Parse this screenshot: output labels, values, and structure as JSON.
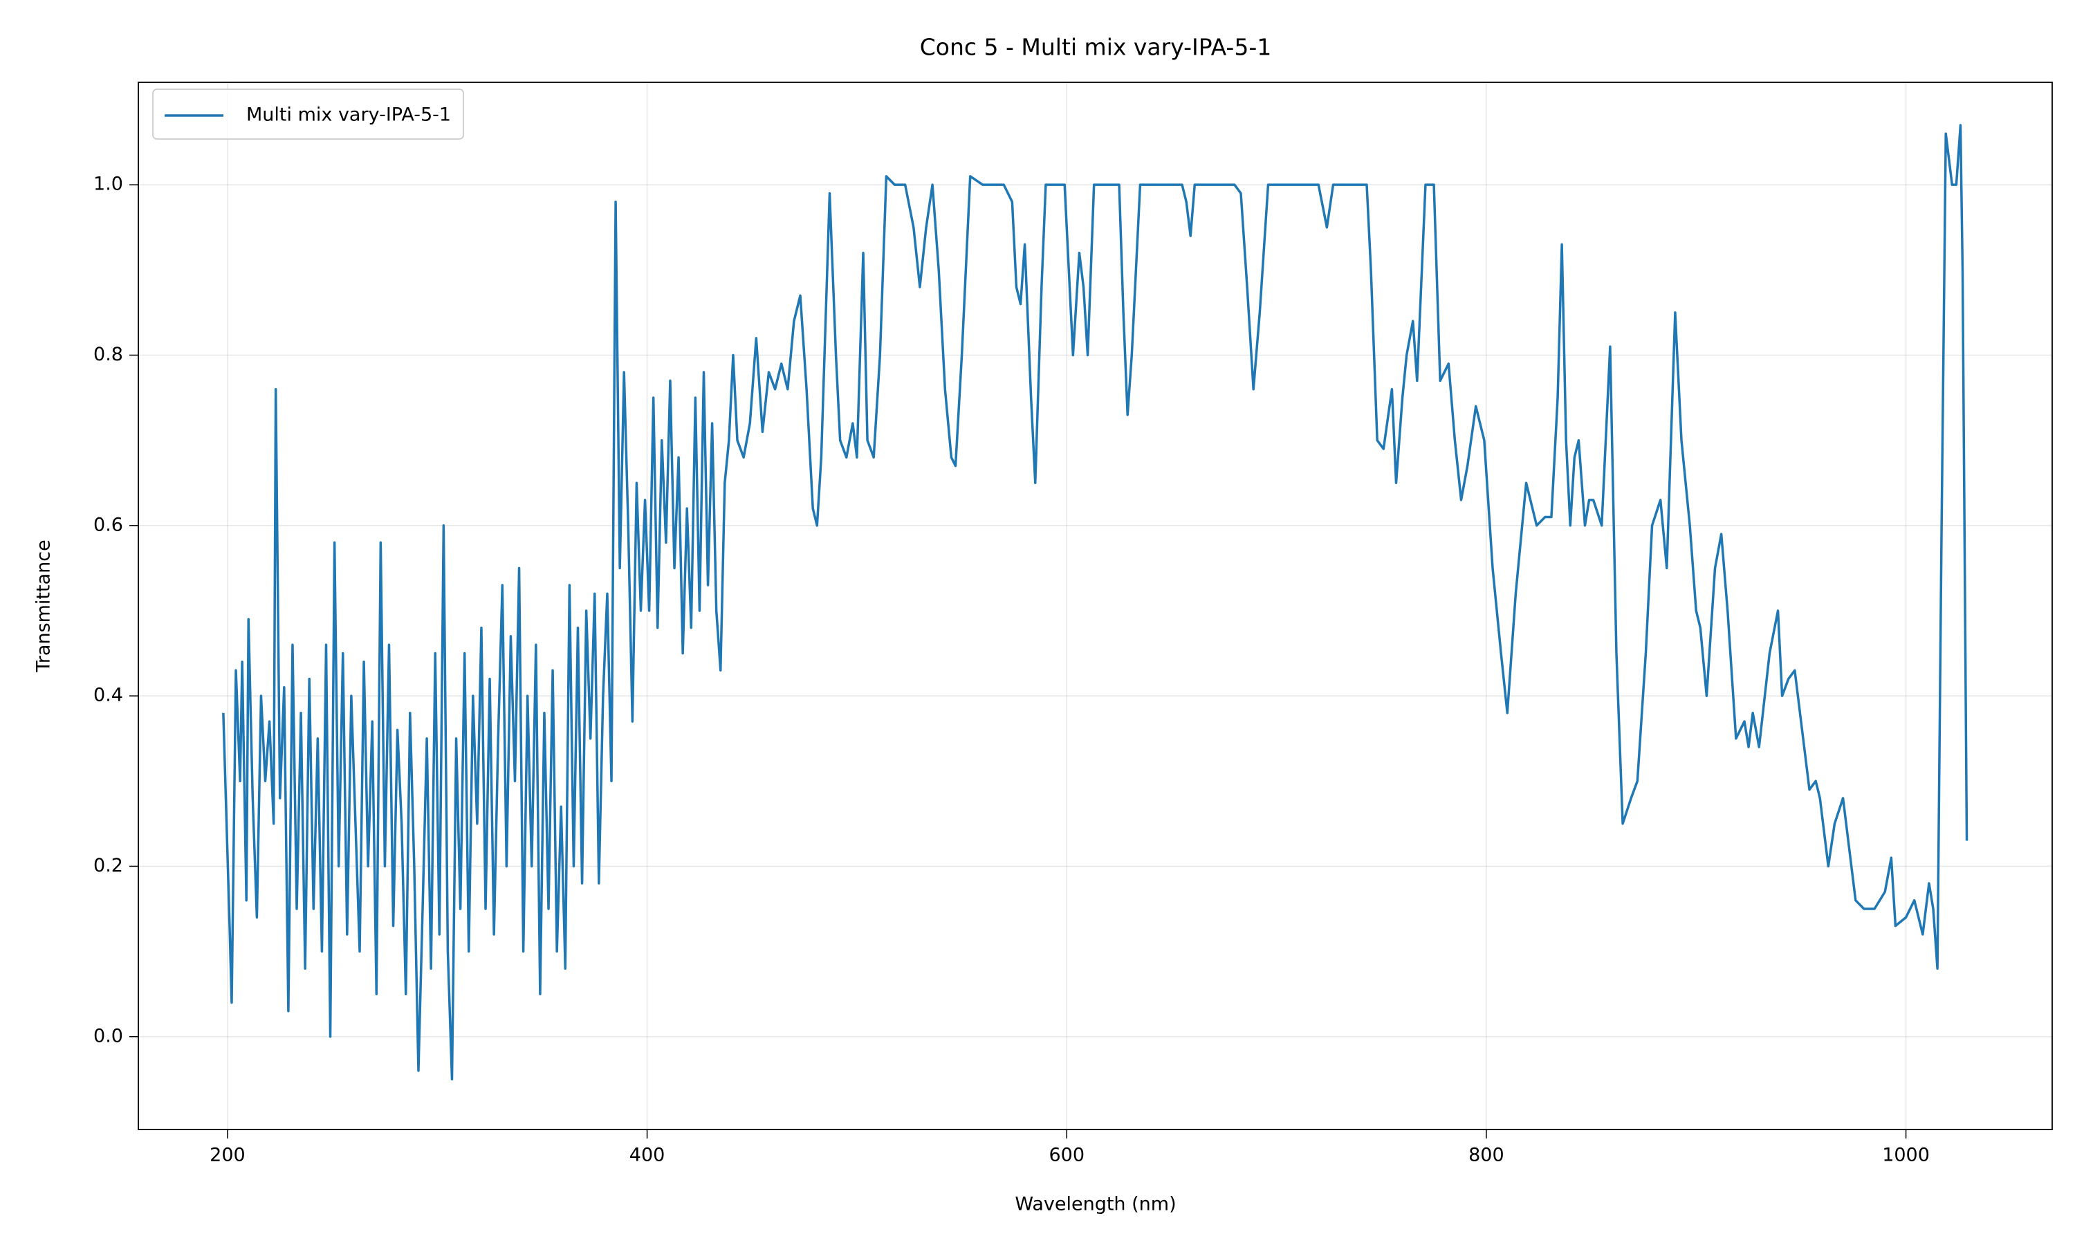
{
  "chart_data": {
    "type": "line",
    "title": "Conc 5 - Multi mix vary-IPA-5-1",
    "x_label": "Wavelength (nm)",
    "y_label": "Transmittance",
    "xlim": [
      157.5,
      1069.7
    ],
    "ylim": [
      -0.109,
      1.1203
    ],
    "xticks": [
      200,
      400,
      600,
      800,
      1000
    ],
    "yticks": [
      {
        "value": 0,
        "label": "0.0"
      },
      0.2,
      0.4,
      0.6,
      0.8,
      {
        "value": 1,
        "label": "1.0"
      }
    ],
    "grid": true,
    "legend_position": "upper left",
    "x": [
      198,
      201,
      202,
      204,
      206,
      207,
      209,
      210,
      212,
      214,
      216,
      218,
      220,
      222,
      223,
      225,
      227,
      229,
      231,
      233,
      235,
      237,
      239,
      241,
      243,
      245,
      247,
      249,
      251,
      253,
      255,
      257,
      259,
      261,
      263,
      265,
      267,
      269,
      271,
      273,
      275,
      277,
      279,
      281,
      283,
      285,
      287,
      289,
      291,
      293,
      295,
      297,
      299,
      301,
      303,
      305,
      307,
      309,
      311,
      313,
      315,
      317,
      319,
      321,
      323,
      325,
      327,
      329,
      331,
      333,
      335,
      337,
      339,
      341,
      343,
      345,
      347,
      349,
      351,
      353,
      355,
      357,
      359,
      361,
      363,
      365,
      367,
      369,
      371,
      373,
      375,
      377,
      379,
      381,
      383,
      385,
      387,
      389,
      391,
      393,
      395,
      397,
      399,
      401,
      403,
      405,
      407,
      409,
      411,
      413,
      415,
      417,
      419,
      421,
      423,
      425,
      427,
      429,
      431,
      433,
      435,
      437,
      439,
      441,
      443,
      446,
      449,
      452,
      455,
      458,
      461,
      464,
      467,
      470,
      473,
      476,
      479,
      481,
      483,
      487,
      490,
      492,
      495,
      498,
      500,
      503,
      505,
      508,
      511,
      514,
      518,
      523,
      527,
      530,
      533,
      536,
      539,
      542,
      545,
      547,
      550,
      554,
      560,
      565,
      570,
      574,
      576,
      578,
      580,
      583,
      585,
      588,
      590,
      595,
      599,
      601,
      603,
      606,
      608,
      610,
      613,
      620,
      625,
      627,
      629,
      631,
      635,
      645,
      655,
      657,
      659,
      661,
      670,
      680,
      683,
      686,
      689,
      692,
      696,
      705,
      715,
      720,
      724,
      727,
      735,
      743,
      745,
      748,
      751,
      755,
      757,
      760,
      762,
      765,
      767,
      771,
      775,
      778,
      782,
      785,
      788,
      791,
      795,
      799,
      803,
      807,
      810,
      814,
      819,
      824,
      828,
      831,
      834,
      836,
      838,
      840,
      842,
      844,
      847,
      849,
      851,
      855,
      859,
      862,
      865,
      869,
      872,
      876,
      879,
      883,
      886,
      890,
      893,
      897,
      900,
      902,
      905,
      909,
      912,
      915,
      919,
      923,
      925,
      927,
      930,
      935,
      939,
      941,
      944,
      947,
      950,
      954,
      957,
      959,
      961,
      963,
      966,
      970,
      973,
      976,
      980,
      985,
      990,
      993,
      995,
      1000,
      1004,
      1008,
      1011,
      1013,
      1015,
      1017,
      1019,
      1022,
      1024,
      1026,
      1027,
      1029
    ],
    "series": [
      {
        "name": "Multi mix vary-IPA-5-1",
        "color": "#1f77b4",
        "values": [
          0.38,
          0.13,
          0.04,
          0.43,
          0.3,
          0.44,
          0.16,
          0.49,
          0.28,
          0.14,
          0.4,
          0.3,
          0.37,
          0.25,
          0.76,
          0.28,
          0.41,
          0.03,
          0.46,
          0.15,
          0.38,
          0.08,
          0.42,
          0.15,
          0.35,
          0.1,
          0.46,
          0.0,
          0.58,
          0.2,
          0.45,
          0.12,
          0.4,
          0.25,
          0.1,
          0.44,
          0.2,
          0.37,
          0.05,
          0.58,
          0.2,
          0.46,
          0.13,
          0.36,
          0.25,
          0.05,
          0.38,
          0.2,
          -0.04,
          0.15,
          0.35,
          0.08,
          0.45,
          0.12,
          0.6,
          0.1,
          -0.05,
          0.35,
          0.15,
          0.45,
          0.1,
          0.4,
          0.25,
          0.48,
          0.15,
          0.42,
          0.12,
          0.35,
          0.53,
          0.2,
          0.47,
          0.3,
          0.55,
          0.1,
          0.4,
          0.2,
          0.46,
          0.05,
          0.38,
          0.15,
          0.43,
          0.1,
          0.27,
          0.08,
          0.53,
          0.2,
          0.48,
          0.18,
          0.5,
          0.35,
          0.52,
          0.18,
          0.4,
          0.52,
          0.3,
          0.98,
          0.55,
          0.78,
          0.6,
          0.37,
          0.65,
          0.5,
          0.63,
          0.5,
          0.75,
          0.48,
          0.7,
          0.58,
          0.77,
          0.55,
          0.68,
          0.45,
          0.62,
          0.48,
          0.75,
          0.5,
          0.78,
          0.53,
          0.72,
          0.5,
          0.43,
          0.65,
          0.7,
          0.8,
          0.7,
          0.68,
          0.72,
          0.82,
          0.71,
          0.78,
          0.76,
          0.79,
          0.76,
          0.84,
          0.87,
          0.76,
          0.62,
          0.6,
          0.68,
          0.99,
          0.8,
          0.7,
          0.68,
          0.72,
          0.68,
          0.92,
          0.7,
          0.68,
          0.8,
          1.01,
          1.0,
          1.0,
          0.95,
          0.88,
          0.95,
          1.0,
          0.9,
          0.76,
          0.68,
          0.67,
          0.8,
          1.01,
          1.0,
          1.0,
          1.0,
          0.98,
          0.88,
          0.86,
          0.93,
          0.75,
          0.65,
          0.88,
          1.0,
          1.0,
          1.0,
          0.9,
          0.8,
          0.92,
          0.88,
          0.8,
          1.0,
          1.0,
          1.0,
          0.85,
          0.73,
          0.8,
          1.0,
          1.0,
          1.0,
          0.98,
          0.94,
          1.0,
          1.0,
          1.0,
          0.99,
          0.88,
          0.76,
          0.85,
          1.0,
          1.0,
          1.0,
          1.0,
          0.95,
          1.0,
          1.0,
          1.0,
          0.9,
          0.7,
          0.69,
          0.76,
          0.65,
          0.75,
          0.8,
          0.84,
          0.77,
          1.0,
          1.0,
          0.77,
          0.79,
          0.7,
          0.63,
          0.67,
          0.74,
          0.7,
          0.55,
          0.45,
          0.38,
          0.52,
          0.65,
          0.6,
          0.61,
          0.61,
          0.75,
          0.93,
          0.7,
          0.6,
          0.68,
          0.7,
          0.6,
          0.63,
          0.63,
          0.6,
          0.81,
          0.45,
          0.25,
          0.28,
          0.3,
          0.45,
          0.6,
          0.63,
          0.55,
          0.85,
          0.7,
          0.6,
          0.5,
          0.48,
          0.4,
          0.55,
          0.59,
          0.5,
          0.35,
          0.37,
          0.34,
          0.38,
          0.34,
          0.45,
          0.5,
          0.4,
          0.42,
          0.43,
          0.37,
          0.29,
          0.3,
          0.28,
          0.24,
          0.2,
          0.25,
          0.28,
          0.22,
          0.16,
          0.15,
          0.15,
          0.17,
          0.21,
          0.13,
          0.14,
          0.16,
          0.12,
          0.18,
          0.15,
          0.08,
          0.6,
          1.06,
          1.0,
          1.0,
          1.07,
          0.9,
          0.23
        ]
      }
    ]
  }
}
